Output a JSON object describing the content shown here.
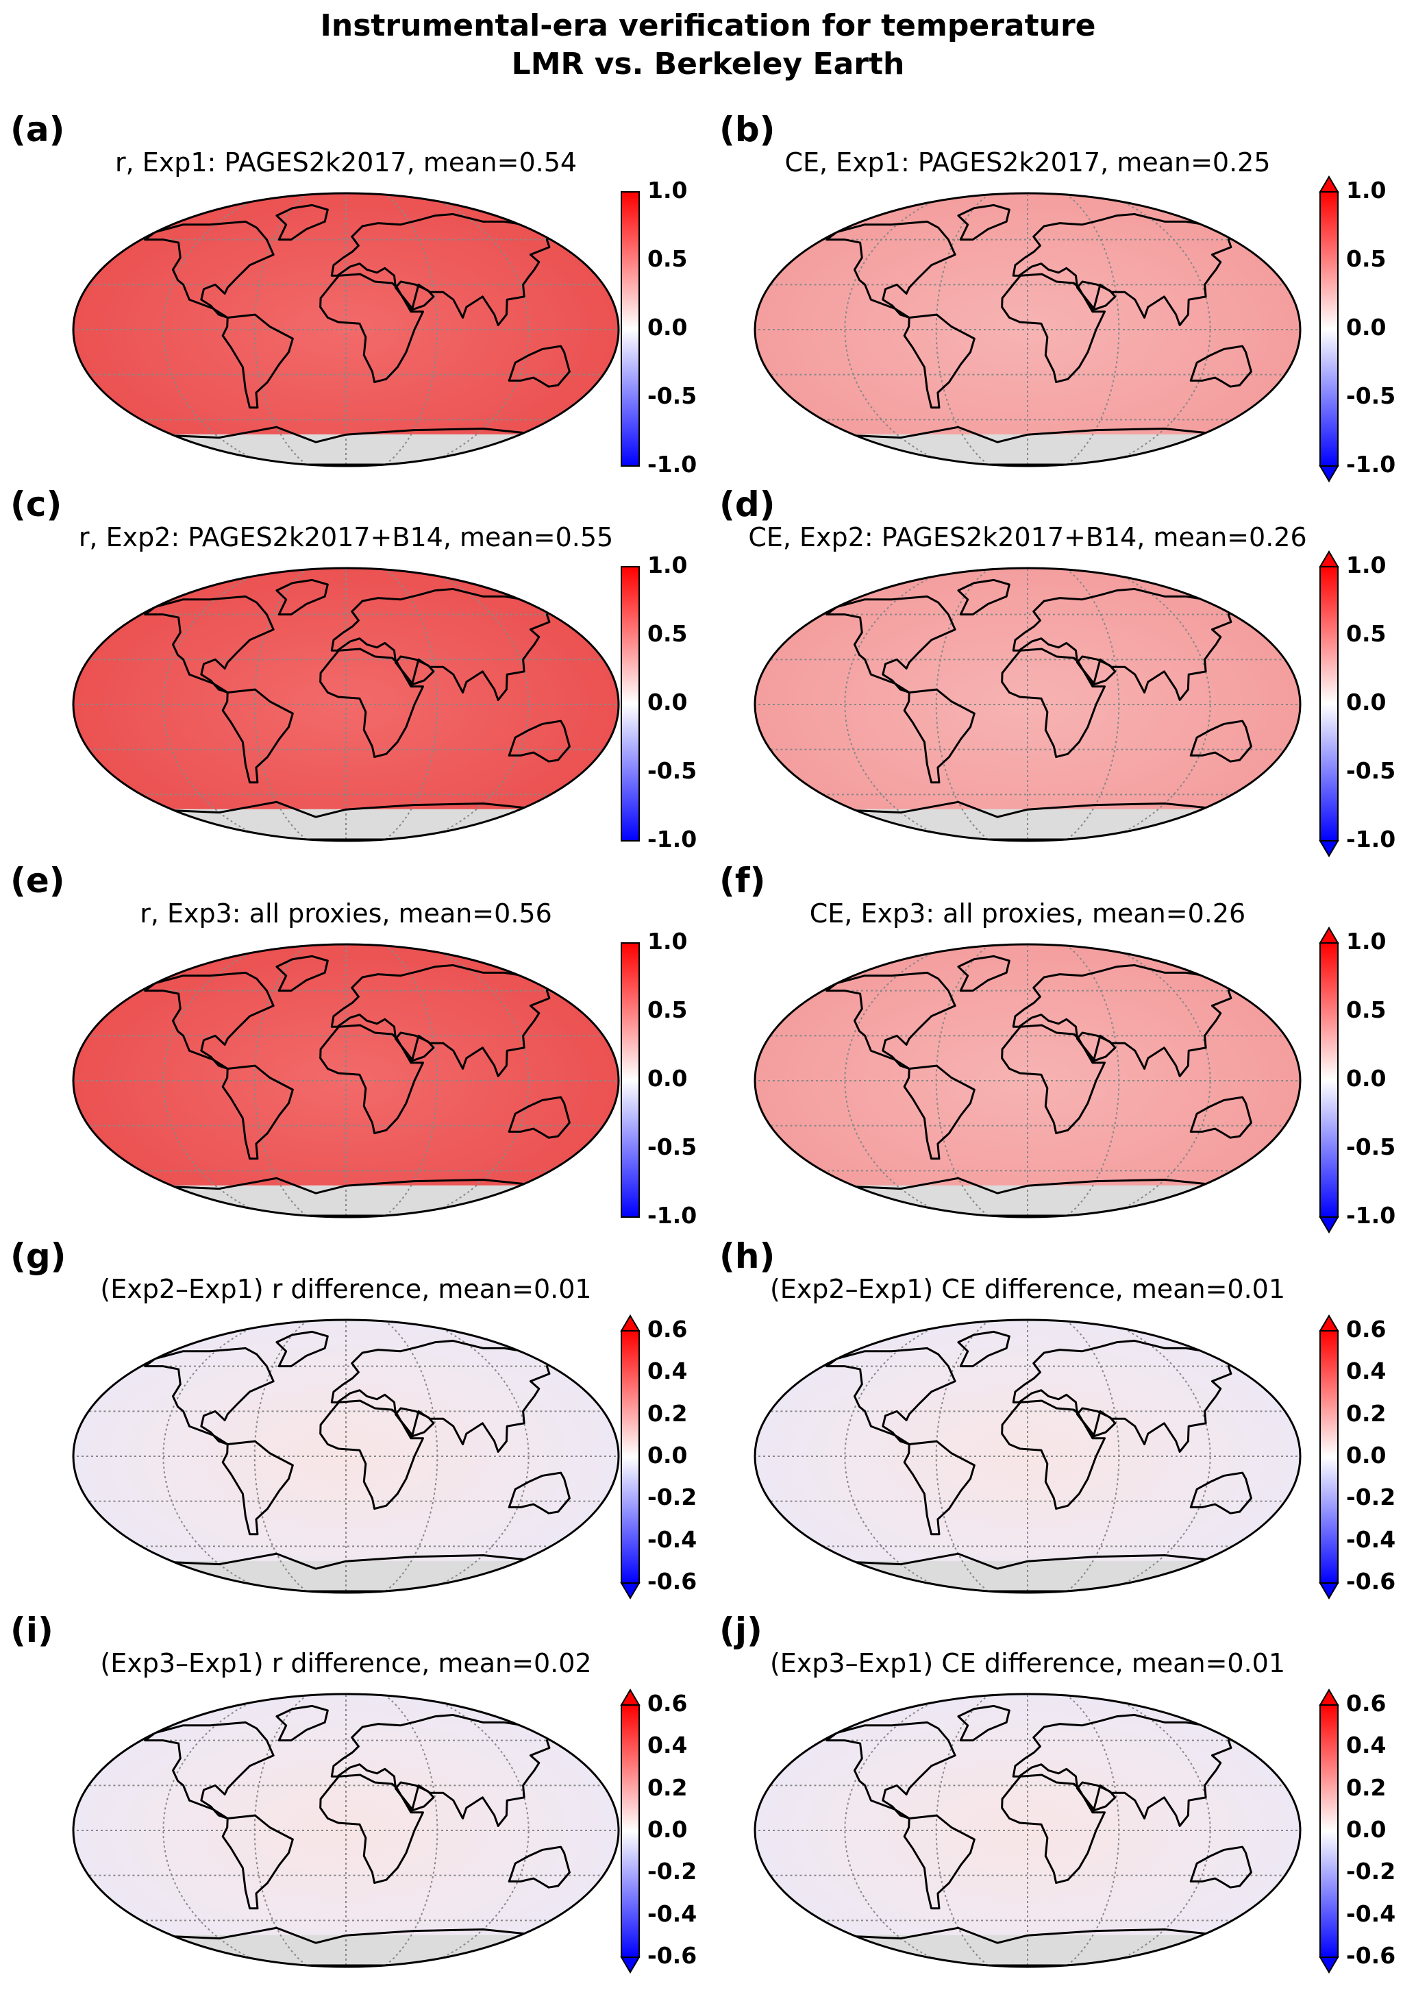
{
  "figure": {
    "title_line1": "Instrumental-era verification for temperature",
    "title_line2": "LMR vs. Berkeley Earth"
  },
  "colors": {
    "neg": "#0000ff",
    "mid": "#ffffff",
    "pos": "#ff0000",
    "land_outline": "#000000",
    "graticule": "#888888",
    "antarctica_mask": "#dcdcdc"
  },
  "colorbars": {
    "corr_ce": [
      "1.0",
      "0.5",
      "0.0",
      "-0.5",
      "-1.0"
    ],
    "diff": [
      "0.6",
      "0.4",
      "0.2",
      "0.0",
      "-0.2",
      "-0.4",
      "-0.6"
    ]
  },
  "panels": [
    {
      "letter": "(a)",
      "title": "r, Exp1: PAGES2k2017, mean=0.54",
      "metric": "r",
      "mean": 0.54
    },
    {
      "letter": "(b)",
      "title": "CE, Exp1: PAGES2k2017, mean=0.25",
      "metric": "CE",
      "mean": 0.25
    },
    {
      "letter": "(c)",
      "title": "r, Exp2: PAGES2k2017+B14, mean=0.55",
      "metric": "r",
      "mean": 0.55
    },
    {
      "letter": "(d)",
      "title": "CE, Exp2: PAGES2k2017+B14, mean=0.26",
      "metric": "CE",
      "mean": 0.26
    },
    {
      "letter": "(e)",
      "title": "r, Exp3: all proxies, mean=0.56",
      "metric": "r",
      "mean": 0.56
    },
    {
      "letter": "(f)",
      "title": "CE, Exp3: all proxies, mean=0.26",
      "metric": "CE",
      "mean": 0.26
    },
    {
      "letter": "(g)",
      "title": "(Exp2–Exp1) r difference, mean=0.01",
      "metric": "r-diff",
      "mean": 0.01
    },
    {
      "letter": "(h)",
      "title": "(Exp2–Exp1) CE difference, mean=0.01",
      "metric": "CE-diff",
      "mean": 0.01
    },
    {
      "letter": "(i)",
      "title": "(Exp3–Exp1) r difference, mean=0.02",
      "metric": "r-diff",
      "mean": 0.02
    },
    {
      "letter": "(j)",
      "title": "(Exp3–Exp1) CE difference, mean=0.01",
      "metric": "CE-diff",
      "mean": 0.01
    }
  ]
}
